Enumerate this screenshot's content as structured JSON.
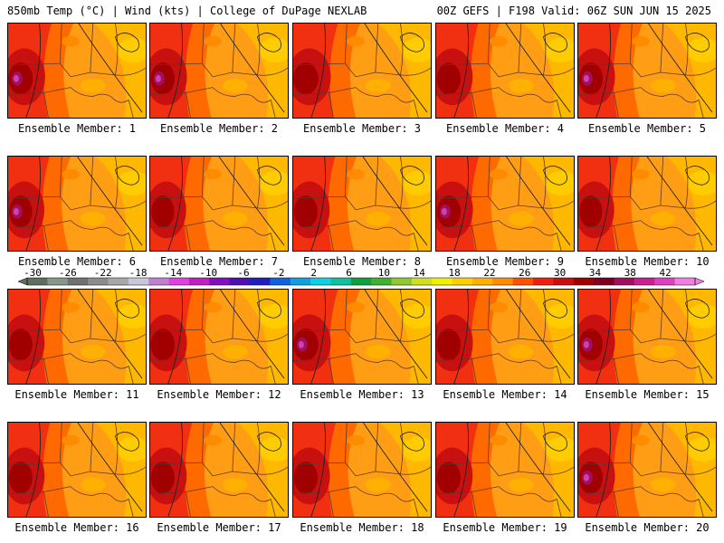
{
  "header": {
    "left": "850mb Temp (°C) | Wind (kts) | College of DuPage NEXLAB",
    "right": "00Z GEFS | F198 Valid: 06Z SUN JUN 15 2025"
  },
  "panels": [
    {
      "label": "Ensemble Member: 1",
      "hot": 0.9,
      "magenta": true
    },
    {
      "label": "Ensemble Member: 2",
      "hot": 0.85,
      "magenta": true
    },
    {
      "label": "Ensemble Member: 3",
      "hot": 1.0,
      "magenta": false
    },
    {
      "label": "Ensemble Member: 4",
      "hot": 0.8,
      "magenta": false
    },
    {
      "label": "Ensemble Member: 5",
      "hot": 0.85,
      "magenta": true
    },
    {
      "label": "Ensemble Member: 6",
      "hot": 0.75,
      "magenta": true
    },
    {
      "label": "Ensemble Member: 7",
      "hot": 0.7,
      "magenta": false
    },
    {
      "label": "Ensemble Member: 8",
      "hot": 0.8,
      "magenta": false
    },
    {
      "label": "Ensemble Member: 9",
      "hot": 0.85,
      "magenta": true
    },
    {
      "label": "Ensemble Member: 10",
      "hot": 0.7,
      "magenta": false
    },
    {
      "label": "Ensemble Member: 11",
      "hot": 0.8,
      "magenta": false
    },
    {
      "label": "Ensemble Member: 12",
      "hot": 0.85,
      "magenta": false
    },
    {
      "label": "Ensemble Member: 13",
      "hot": 1.0,
      "magenta": true
    },
    {
      "label": "Ensemble Member: 14",
      "hot": 0.85,
      "magenta": false
    },
    {
      "label": "Ensemble Member: 15",
      "hot": 0.85,
      "magenta": true
    },
    {
      "label": "Ensemble Member: 16",
      "hot": 0.8,
      "magenta": false
    },
    {
      "label": "Ensemble Member: 17",
      "hot": 0.8,
      "magenta": false
    },
    {
      "label": "Ensemble Member: 18",
      "hot": 0.85,
      "magenta": false
    },
    {
      "label": "Ensemble Member: 19",
      "hot": 0.8,
      "magenta": false
    },
    {
      "label": "Ensemble Member: 20",
      "hot": 0.85,
      "magenta": true
    }
  ],
  "colorbar": {
    "ticks": [
      "-30",
      "-26",
      "-22",
      "-18",
      "-14",
      "-10",
      "-6",
      "-2",
      "2",
      "6",
      "10",
      "14",
      "18",
      "22",
      "26",
      "30",
      "34",
      "38",
      "42"
    ],
    "colors": [
      "#5f6f5f",
      "#889888",
      "#707070",
      "#8c8c8c",
      "#a8a8a8",
      "#c8c8d8",
      "#c080d0",
      "#e040e0",
      "#c020c0",
      "#8010c0",
      "#5010b0",
      "#2020c0",
      "#1060e0",
      "#10a0e0",
      "#10d0e0",
      "#10c0a0",
      "#10a040",
      "#40b030",
      "#90c830",
      "#d0e020",
      "#f0f000",
      "#ffd000",
      "#ffb000",
      "#ff8c00",
      "#ff5000",
      "#f02010",
      "#c81010",
      "#a00000",
      "#800020",
      "#a01060",
      "#c82090",
      "#e040c0",
      "#f080e0"
    ]
  }
}
